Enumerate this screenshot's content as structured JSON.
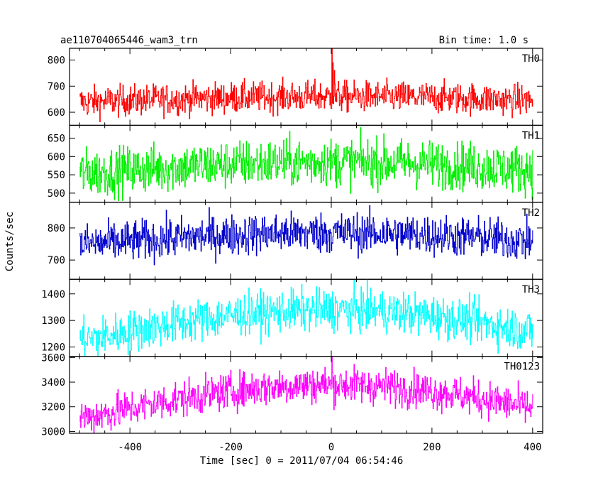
{
  "chart_data": {
    "type": "line",
    "title_left": "ae110704065446_wam3_trn",
    "title_right": "Bin time: 1.0 s",
    "xlabel": "Time [sec] 0 = 2011/07/04 06:54:46",
    "ylabel": "Counts/sec",
    "xlim": [
      -520,
      420
    ],
    "x_ticks": [
      -400,
      -200,
      0,
      200,
      400
    ],
    "x_range_data": [
      -500,
      400
    ],
    "bin_time": 1.0,
    "panels": [
      {
        "name": "TH0",
        "color": "#ff0000",
        "ylim": [
          550,
          845
        ],
        "y_ticks": [
          600,
          700,
          800
        ],
        "baseline_edges": 640,
        "baseline_center": 660,
        "noise": 30,
        "spikes": [
          {
            "x": 1,
            "y": 845
          },
          {
            "x": 3,
            "y": 790
          },
          {
            "x": 6,
            "y": 760
          }
        ]
      },
      {
        "name": "TH1",
        "color": "#00ee00",
        "ylim": [
          475,
          685
        ],
        "y_ticks": [
          500,
          550,
          600,
          650
        ],
        "baseline_edges": 555,
        "baseline_center": 585,
        "noise": 33,
        "spikes": []
      },
      {
        "name": "TH2",
        "color": "#0000cc",
        "ylim": [
          640,
          880
        ],
        "y_ticks": [
          700,
          800
        ],
        "baseline_edges": 750,
        "baseline_center": 785,
        "noise": 32,
        "spikes": []
      },
      {
        "name": "TH3",
        "color": "#00ffff",
        "ylim": [
          1165,
          1455
        ],
        "y_ticks": [
          1200,
          1300,
          1400
        ],
        "baseline_edges": 1230,
        "baseline_center": 1340,
        "noise": 40,
        "spikes": []
      },
      {
        "name": "TH0123",
        "color": "#ff00ff",
        "ylim": [
          2985,
          3610
        ],
        "y_ticks": [
          3000,
          3200,
          3400,
          3600
        ],
        "baseline_edges": 3120,
        "baseline_center": 3380,
        "noise": 75,
        "spikes": [
          {
            "x": 1,
            "y": 3610
          }
        ]
      }
    ]
  }
}
